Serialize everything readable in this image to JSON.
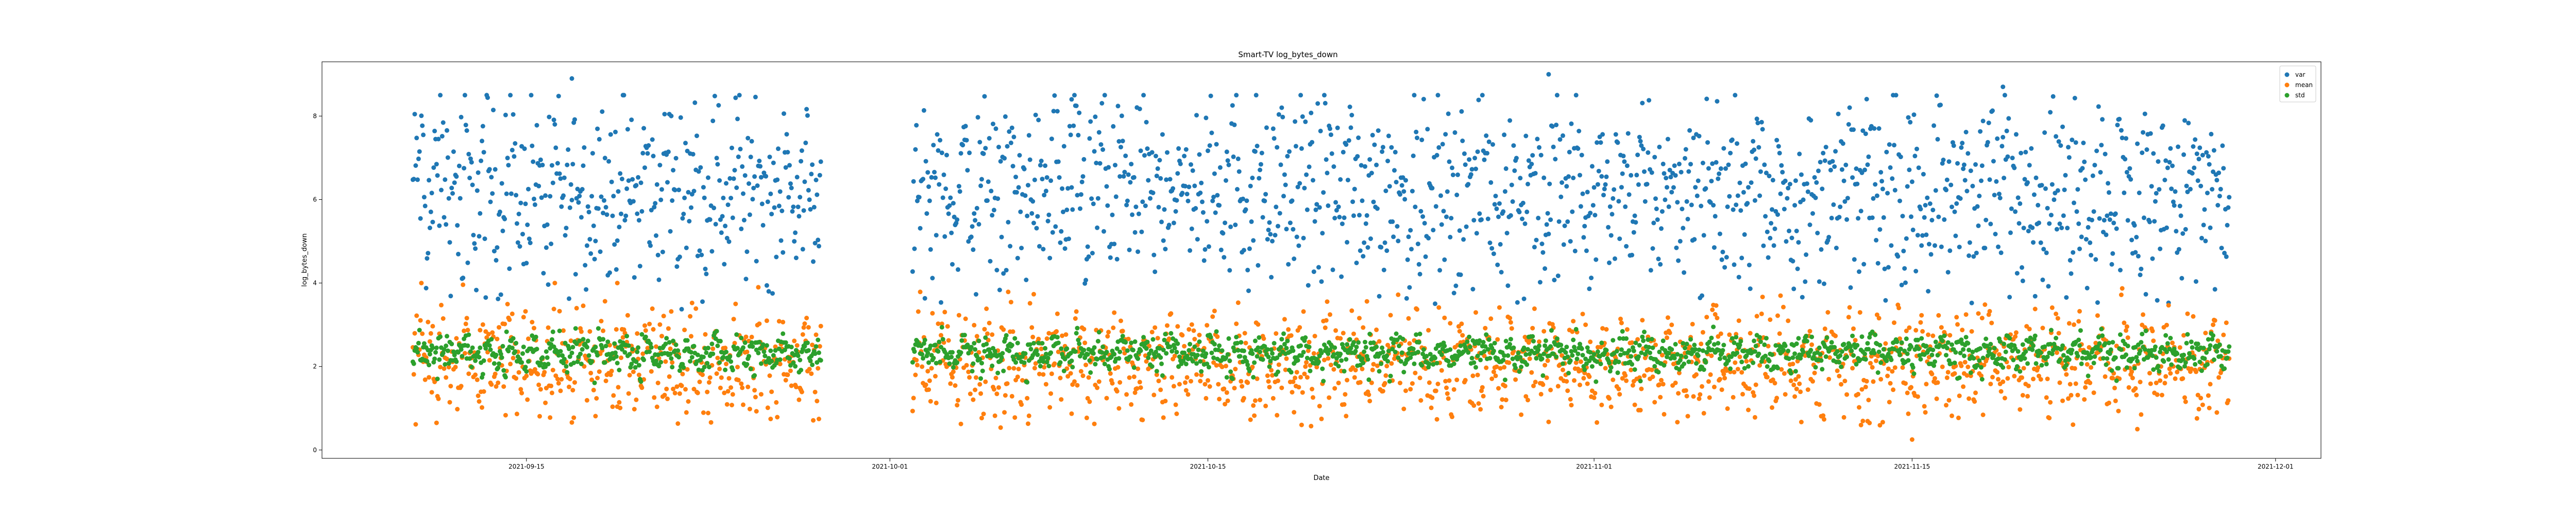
{
  "chart_data": {
    "type": "scatter",
    "title": "Smart-TV log_bytes_down",
    "xlabel": "Date",
    "ylabel": "log_bytes_down",
    "x_range": [
      "2021-09-06",
      "2021-12-03"
    ],
    "ylim": [
      -0.2,
      9.3
    ],
    "x_ticks": [
      "2021-09-15",
      "2021-10-01",
      "2021-10-15",
      "2021-11-01",
      "2021-11-15",
      "2021-12-01"
    ],
    "y_ticks": [
      "0",
      "2",
      "4",
      "6",
      "8"
    ],
    "grid": false,
    "legend_position": "top-right",
    "data_start": "2021-09-10",
    "data_end": "2021-11-28",
    "gap": [
      "2021-09-28",
      "2021-10-02"
    ],
    "samples_per_day": 24,
    "series": [
      {
        "name": "var",
        "color": "#1f77b4",
        "typical_range": [
          3.5,
          8.0
        ],
        "center": 6.3,
        "extremes": [
          {
            "x": "2021-09-17",
            "y": 8.9
          },
          {
            "x": "2021-10-30",
            "y": 9.0
          },
          {
            "x": "2021-11-19",
            "y": 8.7
          },
          {
            "x": "2021-10-09",
            "y": 8.4
          }
        ]
      },
      {
        "name": "mean",
        "color": "#ff7f0e",
        "typical_range": [
          0.5,
          3.8
        ],
        "center": 2.2,
        "extremes": [
          {
            "x": "2021-11-15",
            "y": 0.25
          },
          {
            "x": "2021-09-19",
            "y": 4.0
          }
        ]
      },
      {
        "name": "std",
        "color": "#2ca02c",
        "typical_range": [
          1.6,
          2.9
        ],
        "center": 2.35,
        "extremes": []
      }
    ]
  }
}
